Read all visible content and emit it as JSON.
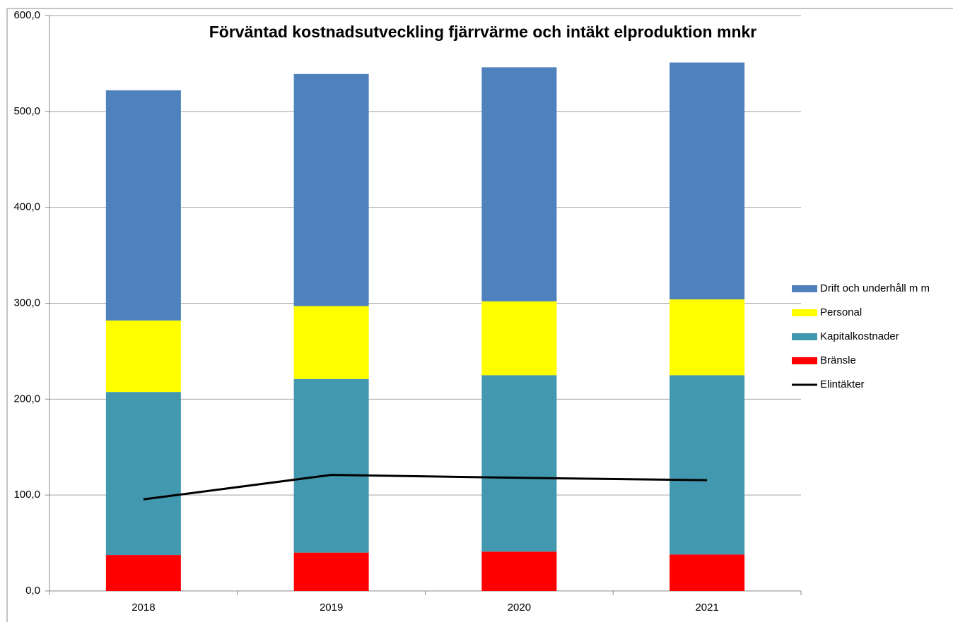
{
  "chart_data": {
    "type": "bar",
    "stacked": true,
    "title": "Förväntad kostnadsutveckling fjärrvärme och intäkt elproduktion mnkr",
    "categories": [
      "2018",
      "2019",
      "2020",
      "2021"
    ],
    "series": [
      {
        "name": "Bränsle",
        "color": "#ff0000",
        "values": [
          37.5,
          40,
          41,
          38
        ]
      },
      {
        "name": "Kapitalkostnader",
        "color": "#4198af",
        "values": [
          170,
          181,
          184,
          187
        ]
      },
      {
        "name": "Personal",
        "color": "#ffff00",
        "values": [
          74.5,
          76,
          77,
          79
        ]
      },
      {
        "name": "Drift och underhåll m m",
        "color": "#4f81bd",
        "values": [
          240,
          242,
          244,
          247
        ]
      },
      {
        "name": "Elintäkter",
        "color": "#000000",
        "type": "line",
        "values": [
          95.5,
          121,
          118,
          115.5
        ]
      }
    ],
    "ylim": [
      0,
      600
    ],
    "yticks": [
      {
        "value": 0,
        "label": "0,0"
      },
      {
        "value": 100,
        "label": "100,0"
      },
      {
        "value": 200,
        "label": "200,0"
      },
      {
        "value": 300,
        "label": "300,0"
      },
      {
        "value": 400,
        "label": "400,0"
      },
      {
        "value": 500,
        "label": "500,0"
      },
      {
        "value": 600,
        "label": "600,0"
      }
    ],
    "grid": true,
    "legend": "right"
  }
}
